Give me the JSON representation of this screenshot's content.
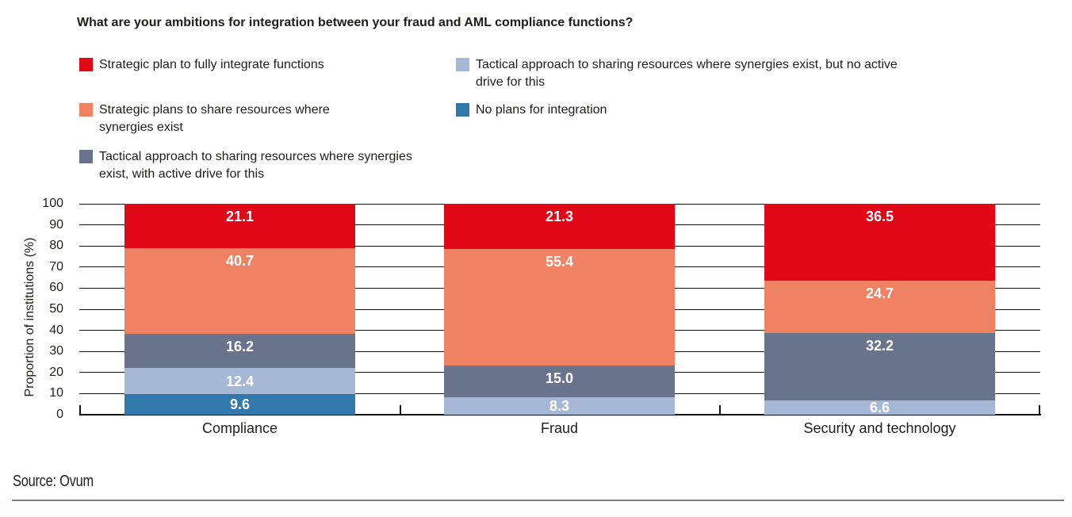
{
  "title": "What are your ambitions for integration between your fraud and AML compliance functions?",
  "source": "Source: Ovum",
  "legend": {
    "columns": [
      {
        "items": [
          {
            "label": "Strategic plan to fully integrate functions",
            "color": "#e00716"
          },
          {
            "label": "Strategic plans to share resources where synergies exist",
            "color": "#f08264"
          },
          {
            "label": "Tactical approach to sharing resources where synergies exist, with active drive for this",
            "color": "#68738c"
          }
        ]
      },
      {
        "items": [
          {
            "label": "Tactical approach to sharing resources where synergies exist, but no active drive for this",
            "color": "#a5b9d7"
          },
          {
            "label": "No plans for integration",
            "color": "#3178ad"
          }
        ]
      }
    ]
  },
  "chart_data": {
    "type": "bar",
    "stacked": true,
    "title": "What are your ambitions for integration between your fraud and AML compliance functions?",
    "ylabel": "Proportion of institutions (%)",
    "xlabel": "",
    "ylim": [
      0,
      100
    ],
    "yticks": [
      0,
      10,
      20,
      30,
      40,
      50,
      60,
      70,
      80,
      90,
      100
    ],
    "grid": true,
    "legend_position": "top",
    "categories": [
      "Compliance",
      "Fraud",
      "Security and technology"
    ],
    "series": [
      {
        "name": "Strategic plan to fully integrate functions",
        "color": "#e00716",
        "values": [
          21.1,
          21.3,
          36.5
        ],
        "labels": [
          "21.1",
          "21.3",
          "36.5"
        ]
      },
      {
        "name": "Strategic plans to share resources where synergies exist",
        "color": "#f08264",
        "values": [
          40.7,
          55.4,
          24.7
        ],
        "labels": [
          "40.7",
          "55.4",
          "24.7"
        ]
      },
      {
        "name": "Tactical approach to sharing resources where synergies exist, with active drive for this",
        "color": "#68738c",
        "values": [
          16.2,
          15.0,
          32.2
        ],
        "labels": [
          "16.2",
          "15.0",
          "32.2"
        ]
      },
      {
        "name": "Tactical approach to sharing resources where synergies exist, but no active drive for this",
        "color": "#a5b9d7",
        "values": [
          12.4,
          8.3,
          6.6
        ],
        "labels": [
          "12.4",
          "8.3",
          "6.6"
        ]
      },
      {
        "name": "No plans for integration",
        "color": "#3178ad",
        "values": [
          9.6,
          null,
          null
        ],
        "labels": [
          "9.6",
          "",
          ""
        ]
      }
    ]
  }
}
